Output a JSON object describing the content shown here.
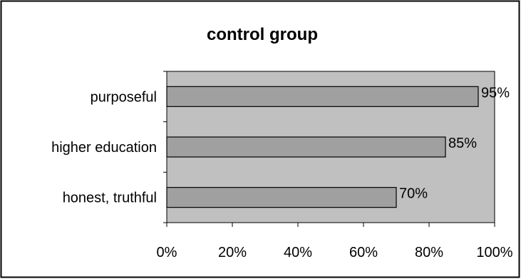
{
  "chart_data": {
    "type": "bar",
    "orientation": "horizontal",
    "title": "control group",
    "categories": [
      "purposeful",
      "higher education",
      "honest, truthful"
    ],
    "values": [
      95,
      85,
      70
    ],
    "value_labels": [
      "95%",
      "85%",
      "70%"
    ],
    "xlim": [
      0,
      100
    ],
    "xticks": [
      "0%",
      "20%",
      "40%",
      "60%",
      "80%",
      "100%"
    ],
    "xlabel": "",
    "ylabel": "",
    "grid": false,
    "legend": "none",
    "colors": {
      "plot_background": "#c0c0c0",
      "bar_fill": "#a0a0a0",
      "bar_stroke": "#000000",
      "chart_border": "#000000"
    }
  }
}
